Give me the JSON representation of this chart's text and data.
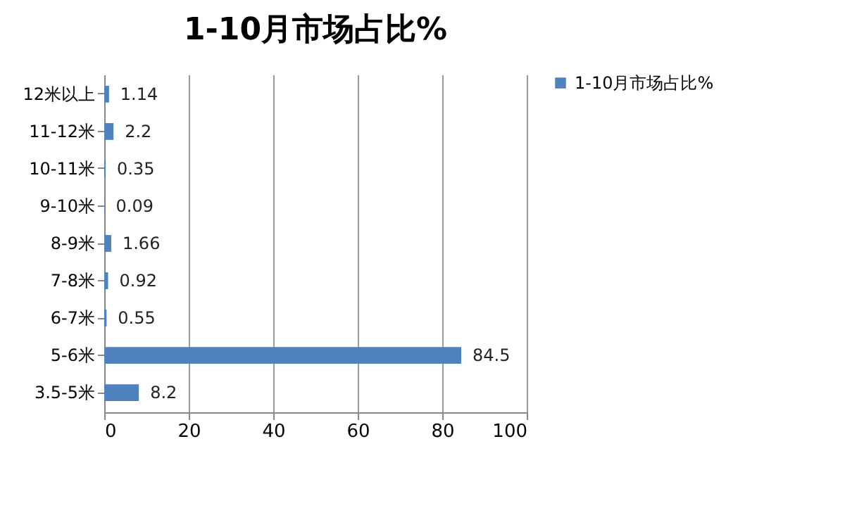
{
  "chart_data": {
    "type": "bar",
    "orientation": "horizontal",
    "title": "1-10月市场占比%",
    "categories": [
      "12米以上",
      "11-12米",
      "10-11米",
      "9-10米",
      "8-9米",
      "7-8米",
      "6-7米",
      "5-6米",
      "3.5-5米"
    ],
    "series": [
      {
        "name": "1-10月市场占比%",
        "color": "#4f81bd",
        "values": [
          1.14,
          2.2,
          0.35,
          0.09,
          1.66,
          0.92,
          0.55,
          84.5,
          8.2
        ]
      }
    ],
    "xlim": [
      0,
      100
    ],
    "xticks": [
      0,
      20,
      40,
      60,
      80,
      100
    ],
    "grid": "x",
    "legend": "right",
    "data_labels": true
  }
}
